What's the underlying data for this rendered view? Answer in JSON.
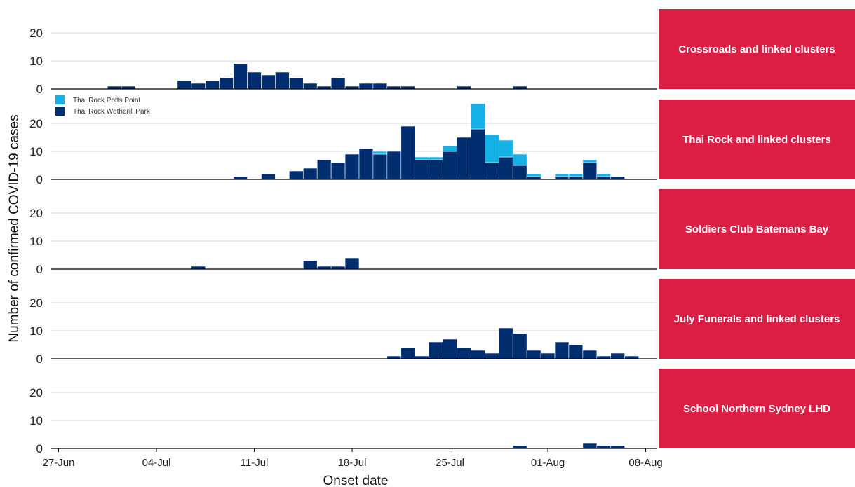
{
  "chart_data": {
    "type": "bar",
    "stacked": true,
    "ylabel": "Number of confirmed COVID-19 cases",
    "xlabel": "Onset date",
    "x_start": "2021-06-27",
    "x_end": "2021-08-09",
    "x_tick_labels": [
      "27-Jun",
      "04-Jul",
      "11-Jul",
      "18-Jul",
      "25-Jul",
      "01-Aug",
      "08-Aug"
    ],
    "y_tick_labels": [
      "0",
      "10",
      "20"
    ],
    "ylim": [
      0,
      26
    ],
    "grid": "horizontal",
    "strip_color": "#DC1E44",
    "colors": {
      "dark": "#002D6E",
      "light": "#16B1E6"
    },
    "legend": {
      "panel": 1,
      "placement": "top-left",
      "items": [
        {
          "label": "Thai Rock Potts Point",
          "color": "#16B1E6"
        },
        {
          "label": "Thai Rock Wetherill Park",
          "color": "#002D6E"
        }
      ]
    },
    "panels": [
      {
        "title": "Crossroads and linked clusters",
        "dates": [
          "2021-07-01",
          "2021-07-02",
          "2021-07-06",
          "2021-07-07",
          "2021-07-08",
          "2021-07-09",
          "2021-07-10",
          "2021-07-11",
          "2021-07-12",
          "2021-07-13",
          "2021-07-14",
          "2021-07-15",
          "2021-07-16",
          "2021-07-17",
          "2021-07-18",
          "2021-07-19",
          "2021-07-20",
          "2021-07-21",
          "2021-07-22",
          "2021-07-26",
          "2021-07-30"
        ],
        "series": [
          {
            "name": "",
            "color": "#002D6E",
            "values": [
              1,
              1,
              3,
              2,
              3,
              4,
              9,
              6,
              5,
              6,
              4,
              2,
              1,
              4,
              1,
              2,
              2,
              1,
              1,
              1,
              1
            ]
          }
        ]
      },
      {
        "title": "Thai Rock and linked clusters",
        "dates": [
          "2021-07-10",
          "2021-07-12",
          "2021-07-14",
          "2021-07-15",
          "2021-07-16",
          "2021-07-17",
          "2021-07-18",
          "2021-07-19",
          "2021-07-20",
          "2021-07-21",
          "2021-07-22",
          "2021-07-23",
          "2021-07-24",
          "2021-07-25",
          "2021-07-26",
          "2021-07-27",
          "2021-07-28",
          "2021-07-29",
          "2021-07-30",
          "2021-07-31",
          "2021-08-01",
          "2021-08-02",
          "2021-08-03",
          "2021-08-04",
          "2021-08-05",
          "2021-08-06"
        ],
        "series": [
          {
            "name": "Thai Rock Wetherill Park",
            "color": "#002D6E",
            "values": [
              1,
              2,
              3,
              4,
              7,
              6,
              9,
              11,
              9,
              10,
              19,
              7,
              7,
              10,
              15,
              18,
              6,
              8,
              5,
              1,
              0,
              1,
              1,
              6,
              1,
              1
            ]
          },
          {
            "name": "Thai Rock Potts Point",
            "color": "#16B1E6",
            "values": [
              0,
              0,
              0,
              0,
              0,
              0,
              0,
              0,
              1,
              0,
              0,
              1,
              1,
              2,
              0,
              9,
              10,
              6,
              4,
              1,
              0,
              1,
              1,
              1,
              1,
              0
            ]
          }
        ]
      },
      {
        "title": "Soldiers Club Batemans Bay",
        "dates": [
          "2021-07-07",
          "2021-07-15",
          "2021-07-16",
          "2021-07-17",
          "2021-07-18"
        ],
        "series": [
          {
            "name": "",
            "color": "#002D6E",
            "values": [
              1,
              3,
              1,
              1,
              4
            ]
          }
        ]
      },
      {
        "title": "July Funerals and linked clusters",
        "dates": [
          "2021-07-21",
          "2021-07-22",
          "2021-07-23",
          "2021-07-24",
          "2021-07-25",
          "2021-07-26",
          "2021-07-27",
          "2021-07-28",
          "2021-07-29",
          "2021-07-30",
          "2021-07-31",
          "2021-08-01",
          "2021-08-02",
          "2021-08-03",
          "2021-08-04",
          "2021-08-05",
          "2021-08-06",
          "2021-08-07"
        ],
        "series": [
          {
            "name": "",
            "color": "#002D6E",
            "values": [
              1,
              4,
              1,
              6,
              7,
              4,
              3,
              2,
              11,
              9,
              3,
              2,
              6,
              5,
              3,
              1,
              2,
              1
            ]
          }
        ]
      },
      {
        "title": "School Northern Sydney LHD",
        "dates": [
          "2021-07-30",
          "2021-08-04",
          "2021-08-05",
          "2021-08-06"
        ],
        "series": [
          {
            "name": "",
            "color": "#002D6E",
            "values": [
              1,
              2,
              1,
              1
            ]
          }
        ]
      }
    ]
  }
}
